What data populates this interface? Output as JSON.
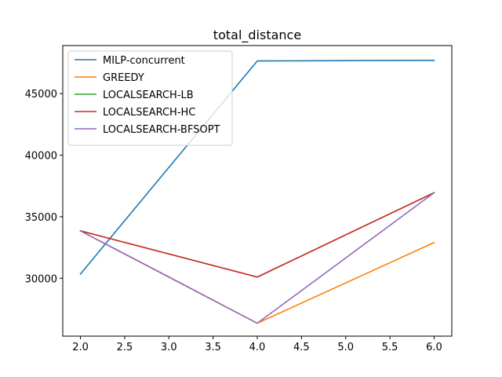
{
  "chart_data": {
    "type": "line",
    "title": "total_distance",
    "xlabel": "",
    "ylabel": "",
    "x": [
      2.0,
      4.0,
      6.0
    ],
    "xlim": [
      1.8,
      6.2
    ],
    "ylim": [
      25300,
      48900
    ],
    "xticks": [
      2.0,
      2.5,
      3.0,
      3.5,
      4.0,
      4.5,
      5.0,
      5.5,
      6.0
    ],
    "xtick_labels": [
      "2.0",
      "2.5",
      "3.0",
      "3.5",
      "4.0",
      "4.5",
      "5.0",
      "5.5",
      "6.0"
    ],
    "yticks": [
      30000,
      35000,
      40000,
      45000
    ],
    "ytick_labels": [
      "30000",
      "35000",
      "40000",
      "45000"
    ],
    "grid": false,
    "legend_position": "top-left",
    "series": [
      {
        "name": "MILP-concurrent",
        "color": "#1f77b4",
        "values": [
          30350,
          47650,
          47700
        ]
      },
      {
        "name": "GREEDY",
        "color": "#ff7f0e",
        "values": [
          33850,
          26350,
          32900
        ]
      },
      {
        "name": "LOCALSEARCH-LB",
        "color": "#2ca02c",
        "values": [
          33850,
          30100,
          36950
        ]
      },
      {
        "name": "LOCALSEARCH-HC",
        "color": "#d62728",
        "values": [
          33850,
          30100,
          36950
        ]
      },
      {
        "name": "LOCALSEARCH-BFSOPT",
        "color": "#9467bd",
        "values": [
          33850,
          26350,
          36950
        ]
      }
    ]
  }
}
